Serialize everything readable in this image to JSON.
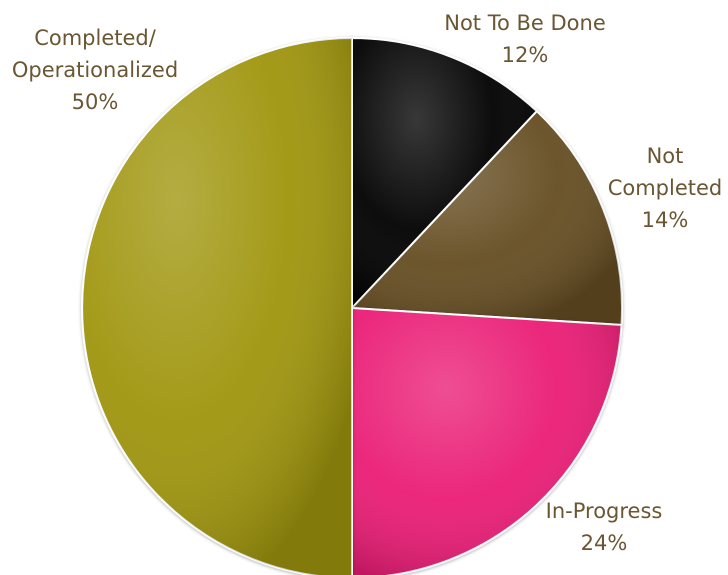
{
  "chart_data": {
    "type": "pie",
    "slices": [
      {
        "label": "Not To Be Done",
        "label_lines": [
          "Not To Be Done"
        ],
        "value": 12,
        "display": "12%",
        "color": "#050505"
      },
      {
        "label": "Not Completed",
        "label_lines": [
          "Not",
          "Completed"
        ],
        "value": 14,
        "display": "14%",
        "color": "#654d22"
      },
      {
        "label": "In-Progress",
        "label_lines": [
          "In-Progress"
        ],
        "value": 24,
        "display": "24%",
        "color": "#ea1c75"
      },
      {
        "label": "Completed/ Operationalized",
        "label_lines": [
          "Completed/",
          "Operationalized"
        ],
        "value": 50,
        "display": "50%",
        "color": "#9f950b"
      }
    ],
    "start_angle_deg": 0,
    "direction": "clockwise",
    "legend": "none",
    "data_labels": "outside"
  }
}
